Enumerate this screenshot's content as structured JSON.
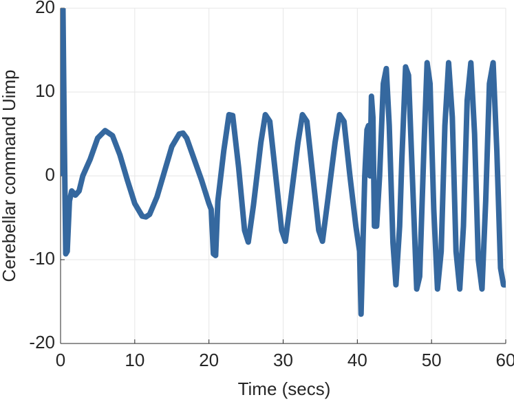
{
  "chart_data": {
    "type": "line",
    "xlabel": "Time (secs)",
    "ylabel": "Cerebellar command Uimp",
    "x": [
      0,
      0.1,
      0.3,
      0.5,
      0.7,
      0.9,
      1.2,
      1.5,
      2,
      2.5,
      3,
      3.5,
      4,
      5,
      6,
      7,
      8,
      9,
      10,
      11,
      11.5,
      12,
      13,
      14,
      15,
      16,
      16.5,
      17,
      18,
      19,
      20,
      20.3,
      20.6,
      20.9,
      21.2,
      22,
      22.7,
      23.2,
      24,
      24.8,
      25.3,
      26,
      27,
      27.6,
      28.2,
      29,
      29.8,
      30.3,
      31,
      32,
      32.6,
      33.2,
      34,
      34.8,
      35.3,
      36,
      37,
      37.6,
      38.2,
      39,
      39.8,
      40.3,
      40.5,
      40.7,
      41,
      41.3,
      41.5,
      41.7,
      41.9,
      42.1,
      42.3,
      42.6,
      43,
      43.5,
      43.9,
      44.3,
      44.8,
      45.2,
      45.7,
      46,
      46.5,
      46.9,
      47.5,
      48,
      48.4,
      49,
      49.4,
      49.8,
      50.3,
      50.8,
      51.3,
      51.8,
      52.3,
      52.8,
      53.3,
      53.8,
      54.3,
      54.8,
      55.3,
      55.8,
      56.3,
      56.8,
      57.3,
      57.8,
      58.3,
      58.8,
      59.3,
      59.7,
      60
    ],
    "values": [
      0,
      22,
      22,
      5,
      -9.3,
      -9,
      -3,
      -1.8,
      -2.3,
      -1.8,
      0,
      1,
      2,
      4.5,
      5.4,
      4.8,
      2.5,
      -0.5,
      -3.3,
      -4.8,
      -4.9,
      -4.6,
      -2.5,
      0.5,
      3.5,
      5,
      5.1,
      4.5,
      2,
      -0.5,
      -3.3,
      -4,
      -9.3,
      -9.5,
      -3,
      3,
      7.3,
      7.2,
      1,
      -6.5,
      -7.9,
      -3.5,
      4,
      7.3,
      6.5,
      0,
      -6.5,
      -7.8,
      -3,
      4,
      7.3,
      6.5,
      0,
      -6.5,
      -7.8,
      -3,
      4,
      7.3,
      6.5,
      0,
      -6,
      -9,
      -16.5,
      -10,
      0,
      5.5,
      6,
      0,
      9.5,
      7,
      -6,
      -6,
      0,
      11,
      12.8,
      6,
      -8,
      -13,
      -6,
      2,
      13,
      12,
      -2,
      -13.5,
      -12,
      4,
      13.5,
      11,
      -4,
      -13.5,
      -9,
      6,
      13.5,
      7,
      -9,
      -13.5,
      -6,
      9,
      13.5,
      5,
      -10,
      -13.5,
      -3,
      11,
      13.5,
      3,
      -11,
      -13,
      -13
    ],
    "color": "#35689f",
    "xlim": [
      0,
      60
    ],
    "xticks": [
      0,
      10,
      20,
      30,
      40,
      50,
      60
    ],
    "ylim": [
      -20,
      20
    ],
    "yticks": [
      -20,
      -10,
      0,
      10,
      20
    ],
    "grid": true
  }
}
